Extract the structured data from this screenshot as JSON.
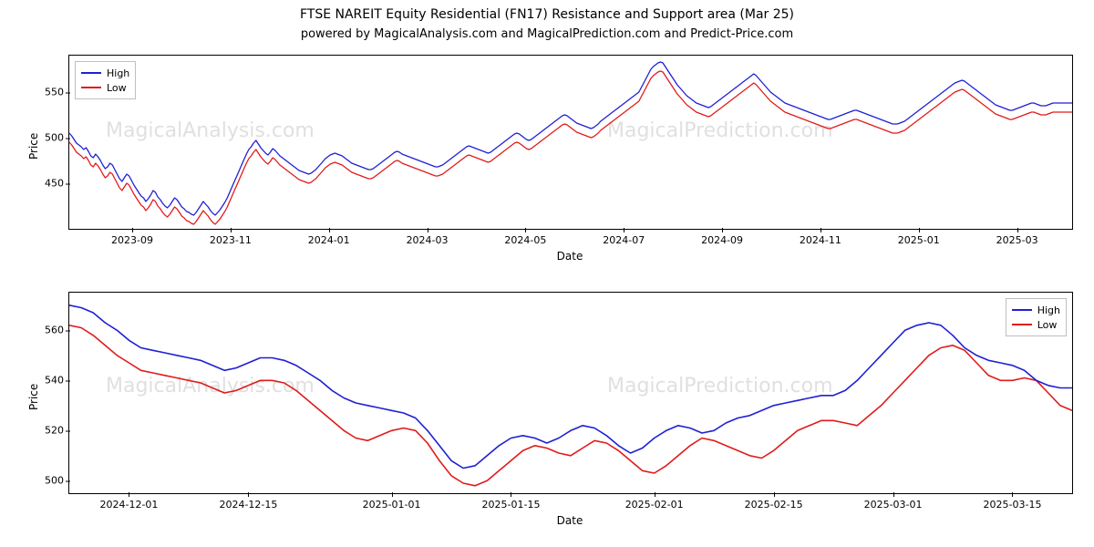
{
  "title": "FTSE NAREIT Equity Residential (FN17) Resistance and Support area (Mar 25)",
  "subtitle": "powered by MagicalAnalysis.com and MagicalPrediction.com and Predict-Price.com",
  "global": {
    "background_color": "#ffffff",
    "text_color": "#000000",
    "font_family": "DejaVu Sans",
    "title_fontsize": 14,
    "subtitle_fontsize": 13,
    "axis_label_fontsize": 12,
    "tick_fontsize": 11
  },
  "legend": {
    "items": [
      {
        "label": "High",
        "color": "#1f1fd6"
      },
      {
        "label": "Low",
        "color": "#e01b1b"
      }
    ],
    "border_color": "#bfbfbf",
    "background_color": "#ffffff"
  },
  "watermarks": {
    "top_left": "MagicalAnalysis.com",
    "top_right": "MagicalPrediction.com",
    "bottom_left": "MagicalAnalysis.com",
    "bottom_right": "MagicalPrediction.com"
  },
  "chart1": {
    "type": "line",
    "xlabel": "Date",
    "ylabel": "Price",
    "x_range": [
      0,
      420
    ],
    "ylim": [
      400,
      590
    ],
    "yticks": [
      450,
      500,
      550
    ],
    "xticks": [
      {
        "pos": 32,
        "label": "2023-09"
      },
      {
        "pos": 82,
        "label": "2023-11"
      },
      {
        "pos": 132,
        "label": "2024-01"
      },
      {
        "pos": 182,
        "label": "2024-03"
      },
      {
        "pos": 232,
        "label": "2024-05"
      },
      {
        "pos": 282,
        "label": "2024-07"
      },
      {
        "pos": 332,
        "label": "2024-09"
      },
      {
        "pos": 382,
        "label": "2024-11"
      },
      {
        "pos": 432,
        "label": "2025-01"
      },
      {
        "pos": 482,
        "label": "2025-03"
      }
    ],
    "x_domain_extend": 510,
    "line_width": 1.3,
    "colors": {
      "high": "#1f1fd6",
      "low": "#e01b1b"
    },
    "series": {
      "high": [
        505,
        502,
        498,
        494,
        492,
        490,
        487,
        489,
        485,
        480,
        478,
        482,
        479,
        475,
        470,
        466,
        468,
        472,
        470,
        465,
        460,
        455,
        452,
        456,
        460,
        458,
        453,
        448,
        444,
        440,
        436,
        434,
        430,
        433,
        437,
        442,
        440,
        435,
        432,
        428,
        425,
        423,
        426,
        430,
        434,
        432,
        428,
        424,
        422,
        419,
        418,
        416,
        415,
        418,
        422,
        426,
        430,
        427,
        424,
        420,
        417,
        415,
        418,
        421,
        425,
        429,
        434,
        440,
        446,
        452,
        458,
        464,
        470,
        476,
        482,
        487,
        490,
        494,
        497,
        493,
        489,
        486,
        483,
        481,
        484,
        488,
        486,
        483,
        480,
        478,
        476,
        474,
        472,
        470,
        468,
        466,
        464,
        463,
        462,
        461,
        460,
        461,
        463,
        465,
        468,
        471,
        474,
        477,
        479,
        481,
        482,
        483,
        482,
        481,
        480,
        478,
        476,
        474,
        472,
        471,
        470,
        469,
        468,
        467,
        466,
        465,
        465,
        466,
        468,
        470,
        472,
        474,
        476,
        478,
        480,
        482,
        484,
        485,
        484,
        482,
        481,
        480,
        479,
        478,
        477,
        476,
        475,
        474,
        473,
        472,
        471,
        470,
        469,
        468,
        468,
        469,
        470,
        472,
        474,
        476,
        478,
        480,
        482,
        484,
        486,
        488,
        490,
        491,
        490,
        489,
        488,
        487,
        486,
        485,
        484,
        483,
        484,
        486,
        488,
        490,
        492,
        494,
        496,
        498,
        500,
        502,
        504,
        505,
        504,
        502,
        500,
        498,
        497,
        498,
        500,
        502,
        504,
        506,
        508,
        510,
        512,
        514,
        516,
        518,
        520,
        522,
        524,
        525,
        524,
        522,
        520,
        518,
        516,
        515,
        514,
        513,
        512,
        511,
        510,
        511,
        513,
        515,
        518,
        520,
        522,
        524,
        526,
        528,
        530,
        532,
        534,
        536,
        538,
        540,
        542,
        544,
        546,
        548,
        550,
        555,
        560,
        565,
        570,
        575,
        578,
        580,
        582,
        583,
        582,
        578,
        574,
        570,
        566,
        562,
        558,
        555,
        552,
        549,
        546,
        544,
        542,
        540,
        538,
        537,
        536,
        535,
        534,
        533,
        534,
        536,
        538,
        540,
        542,
        544,
        546,
        548,
        550,
        552,
        554,
        556,
        558,
        560,
        562,
        564,
        566,
        568,
        570,
        568,
        565,
        562,
        559,
        556,
        553,
        550,
        548,
        546,
        544,
        542,
        540,
        538,
        537,
        536,
        535,
        534,
        533,
        532,
        531,
        530,
        529,
        528,
        527,
        526,
        525,
        524,
        523,
        522,
        521,
        520,
        520,
        521,
        522,
        523,
        524,
        525,
        526,
        527,
        528,
        529,
        530,
        530,
        529,
        528,
        527,
        526,
        525,
        524,
        523,
        522,
        521,
        520,
        519,
        518,
        517,
        516,
        515,
        515,
        515,
        516,
        517,
        518,
        520,
        522,
        524,
        526,
        528,
        530,
        532,
        534,
        536,
        538,
        540,
        542,
        544,
        546,
        548,
        550,
        552,
        554,
        556,
        558,
        560,
        561,
        562,
        563,
        562,
        560,
        558,
        556,
        554,
        552,
        550,
        548,
        546,
        544,
        542,
        540,
        538,
        536,
        535,
        534,
        533,
        532,
        531,
        530,
        530,
        531,
        532,
        533,
        534,
        535,
        536,
        537,
        538,
        538,
        537,
        536,
        535,
        535,
        535,
        536,
        537,
        538,
        538,
        538,
        538,
        538,
        538,
        538,
        538,
        538
      ],
      "low": [
        495,
        492,
        488,
        484,
        482,
        480,
        477,
        479,
        475,
        470,
        468,
        472,
        469,
        465,
        460,
        456,
        458,
        462,
        460,
        455,
        450,
        445,
        442,
        446,
        450,
        448,
        443,
        438,
        434,
        430,
        426,
        424,
        420,
        423,
        427,
        432,
        430,
        425,
        422,
        418,
        415,
        413,
        416,
        420,
        424,
        422,
        418,
        414,
        412,
        409,
        408,
        406,
        405,
        408,
        412,
        416,
        420,
        417,
        414,
        410,
        407,
        405,
        408,
        411,
        415,
        419,
        424,
        430,
        436,
        442,
        448,
        454,
        460,
        466,
        472,
        477,
        480,
        484,
        487,
        483,
        479,
        476,
        473,
        471,
        474,
        478,
        476,
        473,
        470,
        468,
        466,
        464,
        462,
        460,
        458,
        456,
        454,
        453,
        452,
        451,
        450,
        451,
        453,
        455,
        458,
        461,
        464,
        467,
        469,
        471,
        472,
        473,
        472,
        471,
        470,
        468,
        466,
        464,
        462,
        461,
        460,
        459,
        458,
        457,
        456,
        455,
        455,
        456,
        458,
        460,
        462,
        464,
        466,
        468,
        470,
        472,
        474,
        475,
        474,
        472,
        471,
        470,
        469,
        468,
        467,
        466,
        465,
        464,
        463,
        462,
        461,
        460,
        459,
        458,
        458,
        459,
        460,
        462,
        464,
        466,
        468,
        470,
        472,
        474,
        476,
        478,
        480,
        481,
        480,
        479,
        478,
        477,
        476,
        475,
        474,
        473,
        474,
        476,
        478,
        480,
        482,
        484,
        486,
        488,
        490,
        492,
        494,
        495,
        494,
        492,
        490,
        488,
        487,
        488,
        490,
        492,
        494,
        496,
        498,
        500,
        502,
        504,
        506,
        508,
        510,
        512,
        514,
        515,
        514,
        512,
        510,
        508,
        506,
        505,
        504,
        503,
        502,
        501,
        500,
        501,
        503,
        505,
        508,
        510,
        512,
        514,
        516,
        518,
        520,
        522,
        524,
        526,
        528,
        530,
        532,
        534,
        536,
        538,
        540,
        545,
        550,
        555,
        560,
        565,
        568,
        570,
        572,
        573,
        572,
        568,
        564,
        560,
        556,
        552,
        548,
        545,
        542,
        539,
        536,
        534,
        532,
        530,
        528,
        527,
        526,
        525,
        524,
        523,
        524,
        526,
        528,
        530,
        532,
        534,
        536,
        538,
        540,
        542,
        544,
        546,
        548,
        550,
        552,
        554,
        556,
        558,
        560,
        558,
        555,
        552,
        549,
        546,
        543,
        540,
        538,
        536,
        534,
        532,
        530,
        528,
        527,
        526,
        525,
        524,
        523,
        522,
        521,
        520,
        519,
        518,
        517,
        516,
        515,
        514,
        513,
        512,
        511,
        510,
        510,
        511,
        512,
        513,
        514,
        515,
        516,
        517,
        518,
        519,
        520,
        520,
        519,
        518,
        517,
        516,
        515,
        514,
        513,
        512,
        511,
        510,
        509,
        508,
        507,
        506,
        505,
        505,
        505,
        506,
        507,
        508,
        510,
        512,
        514,
        516,
        518,
        520,
        522,
        524,
        526,
        528,
        530,
        532,
        534,
        536,
        538,
        540,
        542,
        544,
        546,
        548,
        550,
        551,
        552,
        553,
        552,
        550,
        548,
        546,
        544,
        542,
        540,
        538,
        536,
        534,
        532,
        530,
        528,
        526,
        525,
        524,
        523,
        522,
        521,
        520,
        520,
        521,
        522,
        523,
        524,
        525,
        526,
        527,
        528,
        528,
        527,
        526,
        525,
        525,
        525,
        526,
        527,
        528,
        528,
        528,
        528,
        528,
        528,
        528,
        528,
        528
      ]
    }
  },
  "chart2": {
    "type": "line",
    "xlabel": "Date",
    "ylabel": "Price",
    "x_range": [
      0,
      80
    ],
    "ylim": [
      495,
      575
    ],
    "yticks": [
      500,
      520,
      540,
      560
    ],
    "xticks": [
      {
        "pos": 5,
        "label": "2024-12-01"
      },
      {
        "pos": 15,
        "label": "2024-12-15"
      },
      {
        "pos": 27,
        "label": "2025-01-01"
      },
      {
        "pos": 37,
        "label": "2025-01-15"
      },
      {
        "pos": 49,
        "label": "2025-02-01"
      },
      {
        "pos": 59,
        "label": "2025-02-15"
      },
      {
        "pos": 69,
        "label": "2025-03-01"
      },
      {
        "pos": 79,
        "label": "2025-03-15"
      }
    ],
    "x_domain_extend": 84,
    "line_width": 1.6,
    "colors": {
      "high": "#1f1fd6",
      "low": "#e01b1b"
    },
    "series": {
      "high": [
        570,
        569,
        567,
        563,
        560,
        556,
        553,
        552,
        551,
        550,
        549,
        548,
        546,
        544,
        545,
        547,
        549,
        549,
        548,
        546,
        543,
        540,
        536,
        533,
        531,
        530,
        529,
        528,
        527,
        525,
        520,
        514,
        508,
        505,
        506,
        510,
        514,
        517,
        518,
        517,
        515,
        517,
        520,
        522,
        521,
        518,
        514,
        511,
        513,
        517,
        520,
        522,
        521,
        519,
        520,
        523,
        525,
        526,
        528,
        530,
        531,
        532,
        533,
        534,
        534,
        536,
        540,
        545,
        550,
        555,
        560,
        562,
        563,
        562,
        558,
        553,
        550,
        548,
        547,
        546,
        544,
        540,
        538,
        537,
        537
      ],
      "low": [
        562,
        561,
        558,
        554,
        550,
        547,
        544,
        543,
        542,
        541,
        540,
        539,
        537,
        535,
        536,
        538,
        540,
        540,
        539,
        536,
        532,
        528,
        524,
        520,
        517,
        516,
        518,
        520,
        521,
        520,
        515,
        508,
        502,
        499,
        498,
        500,
        504,
        508,
        512,
        514,
        513,
        511,
        510,
        513,
        516,
        515,
        512,
        508,
        504,
        503,
        506,
        510,
        514,
        517,
        516,
        514,
        512,
        510,
        509,
        512,
        516,
        520,
        522,
        524,
        524,
        523,
        522,
        526,
        530,
        535,
        540,
        545,
        550,
        553,
        554,
        552,
        547,
        542,
        540,
        540,
        541,
        540,
        535,
        530,
        528
      ]
    }
  }
}
